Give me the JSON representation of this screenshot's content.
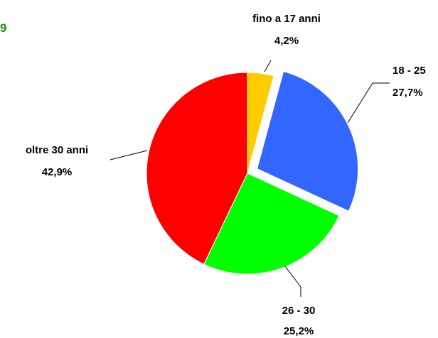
{
  "title_fragment": "9",
  "chart_data": {
    "type": "pie",
    "slices": [
      {
        "label": "fino a 17 anni",
        "value_label": "4,2%",
        "value": 4.2,
        "color": "#ffcc00"
      },
      {
        "label": "18 - 25",
        "value_label": "27,7%",
        "value": 27.7,
        "color": "#3366ff",
        "exploded": true
      },
      {
        "label": "26 - 30",
        "value_label": "25,2%",
        "value": 25.2,
        "color": "#00ff00"
      },
      {
        "label": "oltre  30 anni",
        "value_label": "42,9%",
        "value": 42.9,
        "color": "#ff0000"
      }
    ]
  }
}
